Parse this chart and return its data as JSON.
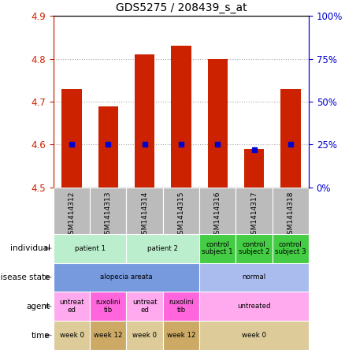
{
  "title": "GDS5275 / 208439_s_at",
  "samples": [
    "GSM1414312",
    "GSM1414313",
    "GSM1414314",
    "GSM1414315",
    "GSM1414316",
    "GSM1414317",
    "GSM1414318"
  ],
  "transformed_count": [
    4.73,
    4.69,
    4.81,
    4.83,
    4.8,
    4.59,
    4.73
  ],
  "percentile_rank_values": [
    25,
    25,
    25,
    25,
    25,
    22,
    25
  ],
  "bar_bottom": 4.5,
  "ylim": [
    4.5,
    4.9
  ],
  "yticks": [
    4.5,
    4.6,
    4.7,
    4.8,
    4.9
  ],
  "y2lim": [
    0,
    100
  ],
  "y2ticks": [
    0,
    25,
    50,
    75,
    100
  ],
  "bar_color": "#cc2200",
  "dot_color": "#0000cc",
  "grid_color": "#aaaaaa",
  "left_axis_color": "#cc2200",
  "right_axis_color": "#0000cc",
  "sample_bg_color": "#bbbbbb",
  "individual_config": [
    {
      "label": "patient 1",
      "cols": [
        0,
        1
      ],
      "color": "#bbeecc"
    },
    {
      "label": "patient 2",
      "cols": [
        2,
        3
      ],
      "color": "#bbeecc"
    },
    {
      "label": "control\nsubject 1",
      "cols": [
        4
      ],
      "color": "#44cc44"
    },
    {
      "label": "control\nsubject 2",
      "cols": [
        5
      ],
      "color": "#44cc44"
    },
    {
      "label": "control\nsubject 3",
      "cols": [
        6
      ],
      "color": "#44cc44"
    }
  ],
  "disease_config": [
    {
      "label": "alopecia areata",
      "cols": [
        0,
        1,
        2,
        3
      ],
      "color": "#7799dd"
    },
    {
      "label": "normal",
      "cols": [
        4,
        5,
        6
      ],
      "color": "#aabbee"
    }
  ],
  "agent_config": [
    {
      "label": "untreat\ned",
      "cols": [
        0
      ],
      "color": "#ffaaee"
    },
    {
      "label": "ruxolini\ntib",
      "cols": [
        1
      ],
      "color": "#ff66dd"
    },
    {
      "label": "untreat\ned",
      "cols": [
        2
      ],
      "color": "#ffaaee"
    },
    {
      "label": "ruxolini\ntib",
      "cols": [
        3
      ],
      "color": "#ff66dd"
    },
    {
      "label": "untreated",
      "cols": [
        4,
        5,
        6
      ],
      "color": "#ffaaee"
    }
  ],
  "time_config": [
    {
      "label": "week 0",
      "cols": [
        0
      ],
      "color": "#ddcc99"
    },
    {
      "label": "week 12",
      "cols": [
        1
      ],
      "color": "#ccaa66"
    },
    {
      "label": "week 0",
      "cols": [
        2
      ],
      "color": "#ddcc99"
    },
    {
      "label": "week 12",
      "cols": [
        3
      ],
      "color": "#ccaa66"
    },
    {
      "label": "week 0",
      "cols": [
        4,
        5,
        6
      ],
      "color": "#ddcc99"
    }
  ],
  "row_labels": [
    "individual",
    "disease state",
    "agent",
    "time"
  ]
}
